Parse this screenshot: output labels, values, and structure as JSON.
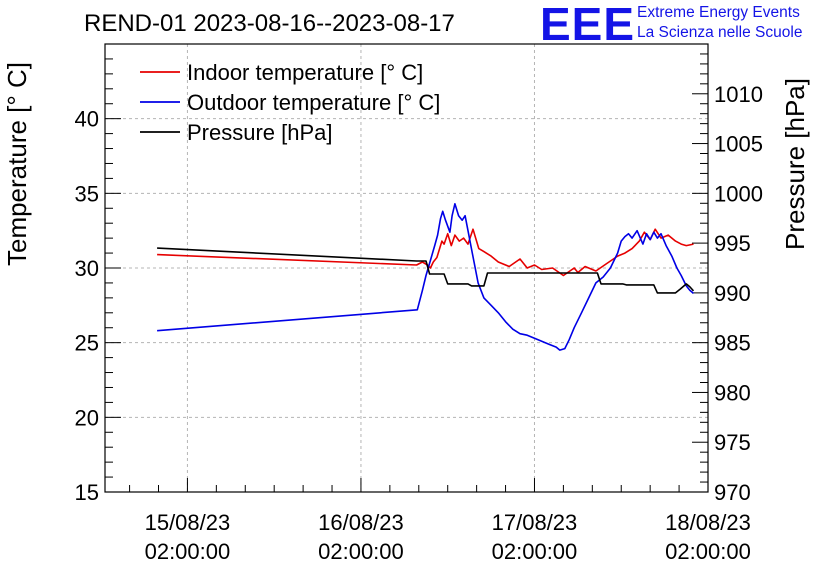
{
  "header": {
    "title": "REND-01 2023-08-16--2023-08-17",
    "logo_mark": "EEE",
    "logo_line1": "Extreme Energy Events",
    "logo_line2": "La Scienza nelle Scuole"
  },
  "chart_data": {
    "type": "line",
    "colors": {
      "indoor": "#e60000",
      "outdoor": "#0000e6",
      "pressure": "#000000",
      "grid": "#b4b4b4"
    },
    "x_ticks": [
      {
        "date": "15/08/23",
        "time": "02:00:00",
        "hour": 0
      },
      {
        "date": "16/08/23",
        "time": "02:00:00",
        "hour": 24
      },
      {
        "date": "17/08/23",
        "time": "02:00:00",
        "hour": 48
      },
      {
        "date": "18/08/23",
        "time": "02:00:00",
        "hour": 72
      }
    ],
    "xlim": [
      -11.4,
      72
    ],
    "ylabel_left": "Temperature [° C]",
    "ylabel_right": "Pressure [hPa]",
    "ylim_left": [
      15,
      45
    ],
    "ylim_right": [
      970,
      1015
    ],
    "y_ticks_left": [
      15,
      20,
      25,
      30,
      35,
      40
    ],
    "y_ticks_right": [
      970,
      975,
      980,
      985,
      990,
      995,
      1000,
      1005,
      1010
    ],
    "grid": true,
    "legend": {
      "position": "top-left",
      "entries": [
        {
          "key": "indoor",
          "label": "Indoor temperature [° C]"
        },
        {
          "key": "outdoor",
          "label": "Outdoor temperature [° C]"
        },
        {
          "key": "pressure",
          "label": "Pressure [hPa]"
        }
      ]
    },
    "series": [
      {
        "name": "Indoor temperature [° C]",
        "key": "indoor",
        "axis": "left",
        "x": [
          -4.2,
          31.7,
          32.5,
          33.2,
          33.6,
          34.0,
          34.5,
          35.2,
          35.5,
          36.0,
          36.5,
          37.0,
          37.6,
          38.2,
          38.8,
          39.5,
          40.3,
          41.0,
          42.0,
          43.0,
          44.5,
          46.0,
          47.0,
          48.0,
          49.0,
          50.5,
          52.0,
          53.5,
          54.0,
          55.0,
          56.5,
          57.7,
          59.5,
          60.5,
          61.5,
          62.5,
          63.2,
          64.0,
          64.7,
          65.5,
          66.5,
          67.5,
          68.3,
          69.0,
          70.0
        ],
        "values": [
          30.9,
          30.2,
          30.4,
          30.2,
          30.0,
          30.4,
          30.7,
          31.8,
          31.6,
          32.3,
          31.5,
          32.2,
          31.8,
          32.0,
          31.6,
          32.6,
          31.3,
          31.1,
          30.8,
          30.4,
          30.1,
          30.6,
          30.0,
          30.2,
          29.9,
          30.0,
          29.5,
          30.0,
          29.7,
          30.1,
          29.8,
          30.2,
          30.8,
          31.0,
          31.3,
          31.8,
          32.4,
          31.9,
          32.6,
          32.0,
          32.2,
          31.8,
          31.6,
          31.5,
          31.6
        ]
      },
      {
        "name": "Outdoor temperature [° C]",
        "key": "outdoor",
        "axis": "left",
        "x": [
          -4.2,
          31.8,
          32.5,
          33.0,
          33.6,
          34.2,
          34.6,
          35.0,
          35.3,
          35.7,
          36.3,
          36.6,
          37.0,
          37.5,
          38.0,
          38.4,
          38.8,
          39.4,
          40.2,
          41.0,
          42.0,
          43.0,
          44.0,
          45.0,
          46.0,
          47.0,
          48.5,
          50.0,
          51.0,
          51.5,
          52.2,
          52.8,
          53.5,
          54.5,
          55.5,
          56.5,
          57.5,
          58.5,
          59.5,
          60.0,
          60.5,
          61.0,
          61.5,
          62.2,
          63.0,
          63.5,
          64.0,
          64.5,
          65.0,
          65.5,
          66.2,
          67.0,
          67.7,
          68.3,
          69.0,
          69.5,
          70.0
        ],
        "values": [
          25.8,
          27.2,
          28.5,
          29.5,
          30.5,
          31.5,
          32.2,
          33.3,
          33.8,
          33.2,
          32.4,
          33.5,
          34.3,
          33.5,
          33.2,
          33.5,
          32.5,
          31.0,
          29.0,
          28.0,
          27.5,
          27.0,
          26.4,
          25.9,
          25.6,
          25.5,
          25.2,
          24.9,
          24.7,
          24.5,
          24.6,
          25.2,
          26.0,
          27.0,
          28.0,
          29.0,
          29.4,
          30.0,
          31.0,
          31.8,
          32.1,
          32.3,
          32.0,
          32.5,
          31.6,
          32.3,
          31.9,
          32.4,
          32.0,
          32.3,
          31.5,
          30.8,
          30.0,
          29.5,
          28.8,
          28.5,
          28.3
        ]
      },
      {
        "name": "Pressure [hPa]",
        "key": "pressure",
        "axis": "right",
        "x": [
          -4.2,
          31.7,
          33.0,
          33.5,
          35.5,
          36.0,
          38.8,
          39.3,
          41.0,
          41.5,
          49.0,
          52.0,
          55.0,
          56.7,
          57.2,
          60.2,
          60.7,
          64.5,
          65.0,
          67.5,
          68.2,
          69.0,
          69.5,
          70.0
        ],
        "values": [
          994.5,
          993.2,
          993.2,
          991.9,
          991.9,
          990.9,
          990.9,
          990.7,
          990.7,
          992.0,
          992.0,
          992.0,
          992.0,
          992.0,
          990.9,
          990.9,
          990.8,
          990.8,
          990.0,
          990.0,
          990.4,
          990.9,
          990.6,
          990.2
        ]
      }
    ]
  }
}
